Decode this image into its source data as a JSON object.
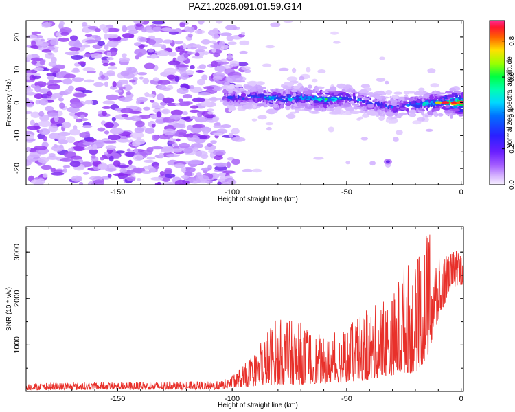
{
  "title": "PAZ1.2026.091.01.59.G14",
  "chart_data": [
    {
      "type": "heatmap",
      "xlabel": "Height of straight line (km)",
      "ylabel": "Frequency (Hz)",
      "xlim": [
        -190,
        1
      ],
      "ylim": [
        -25,
        25
      ],
      "xticks": [
        -150,
        -100,
        -50,
        0
      ],
      "xtick_labels": [
        "-150",
        "-100",
        "-50",
        "0"
      ],
      "yticks": [
        -20,
        -10,
        0,
        10,
        20
      ],
      "ytick_labels": [
        "-20",
        "-10",
        "0",
        "10",
        "20"
      ],
      "colorbar": {
        "label": "Normalized spectral amplitude",
        "range": [
          0.0,
          0.9
        ],
        "ticks": [
          0.0,
          0.2,
          0.4,
          0.6,
          0.8
        ],
        "tick_labels": [
          "0.0",
          "0.2",
          "0.4",
          "0.6",
          "0.8"
        ]
      },
      "ridge": {
        "description_points_x": [
          -100,
          -90,
          -80,
          -70,
          -60,
          -50,
          -40,
          -30,
          -20,
          -10,
          0
        ],
        "center_freq": [
          1.5,
          2,
          1,
          1.5,
          1,
          1.5,
          0,
          -1.5,
          -0.5,
          0,
          0
        ],
        "peak_amplitude": [
          0.25,
          0.35,
          0.45,
          0.4,
          0.5,
          0.4,
          0.35,
          0.3,
          0.4,
          0.55,
          0.9
        ]
      }
    },
    {
      "type": "line",
      "xlabel": "Height of straight line (km)",
      "ylabel": "SNR (10 * v/v)",
      "xlim": [
        -190,
        1
      ],
      "ylim": [
        0,
        3550
      ],
      "xticks": [
        -150,
        -100,
        -50,
        0
      ],
      "xtick_labels": [
        "-150",
        "-100",
        "-50",
        "0"
      ],
      "yticks": [
        1000,
        2000,
        3000
      ],
      "ytick_labels": [
        "1000",
        "2000",
        "3000"
      ],
      "series": [
        {
          "name": "SNR",
          "color": "#e8302a",
          "envelope_x": [
            -190,
            -150,
            -105,
            -100,
            -90,
            -82,
            -70,
            -60,
            -50,
            -40,
            -30,
            -25,
            -20,
            -15,
            -10,
            -5,
            0
          ],
          "envelope_low": [
            30,
            40,
            40,
            80,
            120,
            150,
            150,
            180,
            200,
            250,
            350,
            400,
            400,
            700,
            1500,
            2200,
            2300
          ],
          "envelope_high": [
            180,
            200,
            220,
            350,
            800,
            1600,
            1500,
            1150,
            1400,
            1800,
            2100,
            2900,
            2700,
            3550,
            2900,
            3000,
            3100
          ]
        }
      ]
    }
  ]
}
